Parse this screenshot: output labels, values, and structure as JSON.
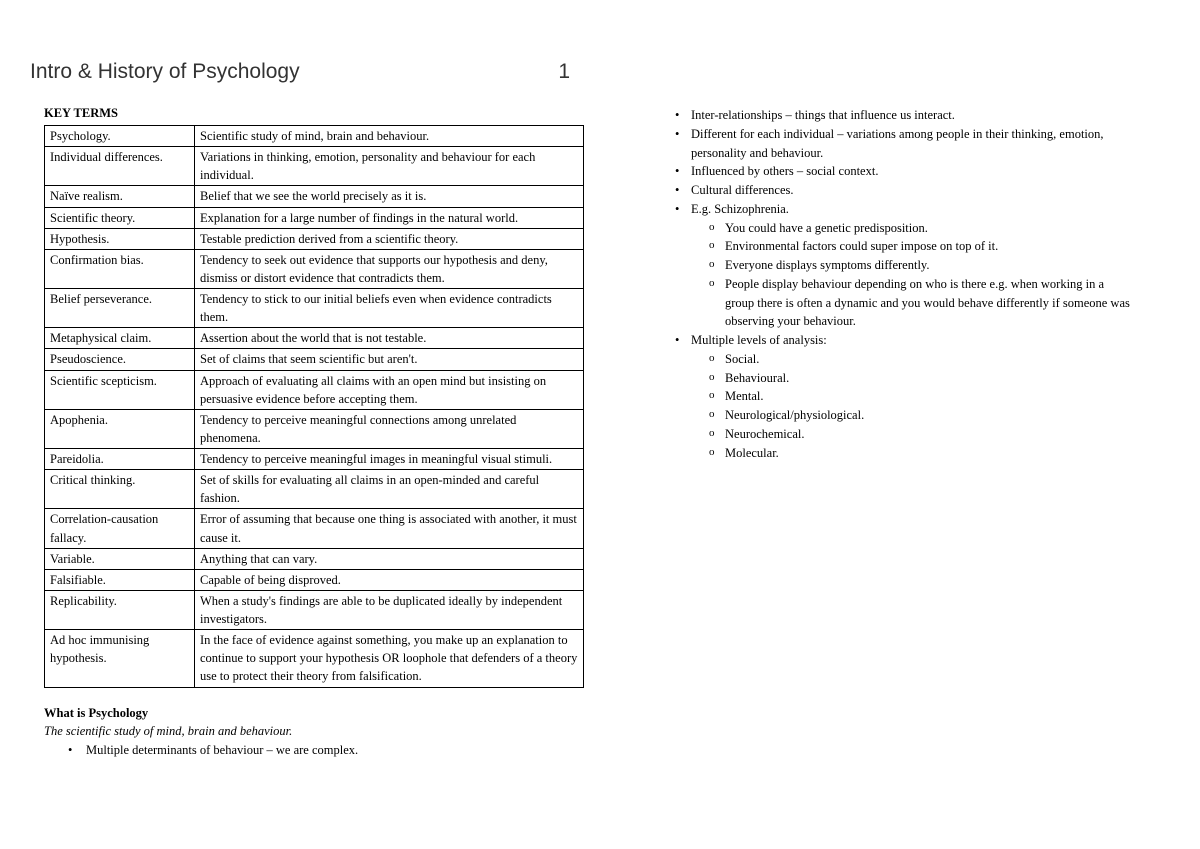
{
  "title": "Intro & History of Psychology",
  "page_number": "1",
  "key_terms_heading": "KEY TERMS",
  "key_terms": [
    {
      "term": "Psychology.",
      "def": "Scientific study of mind, brain and behaviour."
    },
    {
      "term": "Individual differences.",
      "def": "Variations in thinking, emotion, personality and behaviour for each individual."
    },
    {
      "term": "Naïve realism.",
      "def": "Belief that we see the world precisely as it is."
    },
    {
      "term": "Scientific theory.",
      "def": "Explanation for a large number of findings in the natural world."
    },
    {
      "term": "Hypothesis.",
      "def": "Testable prediction derived from a scientific theory."
    },
    {
      "term": "Confirmation bias.",
      "def": "Tendency to seek out evidence that supports our hypothesis and deny, dismiss or distort evidence that contradicts them."
    },
    {
      "term": "Belief perseverance.",
      "def": "Tendency to stick to our initial beliefs even when evidence contradicts them."
    },
    {
      "term": "Metaphysical claim.",
      "def": "Assertion about the world that is not testable."
    },
    {
      "term": "Pseudoscience.",
      "def": "Set of claims that seem scientific but aren't."
    },
    {
      "term": "Scientific scepticism.",
      "def": "Approach of evaluating all claims with an open mind but insisting on persuasive evidence before accepting them."
    },
    {
      "term": "Apophenia.",
      "def": "Tendency to perceive meaningful connections among unrelated phenomena."
    },
    {
      "term": "Pareidolia.",
      "def": "Tendency to perceive meaningful images in meaningful visual stimuli."
    },
    {
      "term": "Critical thinking.",
      "def": "Set of skills for evaluating all claims in an open-minded and careful fashion."
    },
    {
      "term": "Correlation-causation fallacy.",
      "def": "Error of assuming that because one thing is associated with another, it must cause it."
    },
    {
      "term": "Variable.",
      "def": "Anything that can vary."
    },
    {
      "term": "Falsifiable.",
      "def": "Capable of being disproved."
    },
    {
      "term": "Replicability.",
      "def": "When a study's findings are able to be duplicated ideally by independent investigators."
    },
    {
      "term": "Ad hoc immunising hypothesis.",
      "def": "In the face of evidence against something, you make up an explanation to continue to support your hypothesis OR loophole that defenders of a theory use to protect their theory from falsification."
    }
  ],
  "what_is_heading": "What is Psychology",
  "what_is_subtext": "The scientific study of mind, brain and behaviour.",
  "left_bullets": [
    "Multiple determinants of behaviour – we are complex."
  ],
  "right_bullets": [
    {
      "text": "Inter-relationships – things that influence us interact."
    },
    {
      "text": "Different for each individual – variations among people in their thinking, emotion, personality and behaviour."
    },
    {
      "text": "Influenced by others – social context."
    },
    {
      "text": "Cultural differences."
    },
    {
      "text": "E.g. Schizophrenia.",
      "sub": [
        "You could have a genetic predisposition.",
        "Environmental factors could super impose on top of it.",
        "Everyone displays symptoms differently.",
        "People display behaviour depending on who is there e.g. when working in a group there is often a dynamic and you would behave differently if someone was observing your behaviour."
      ]
    },
    {
      "text": "Multiple levels of analysis:",
      "sub": [
        "Social.",
        "Behavioural.",
        "Mental.",
        "Neurological/physiological.",
        "Neurochemical.",
        "Molecular."
      ]
    }
  ]
}
